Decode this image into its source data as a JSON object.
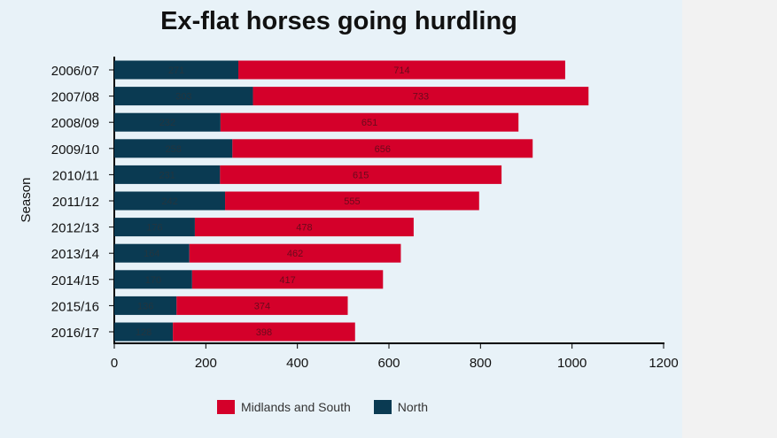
{
  "chart_data": {
    "type": "bar",
    "orientation": "horizontal",
    "stacked": true,
    "title": "Ex-flat horses going hurdling",
    "xlabel": "",
    "ylabel": "Season",
    "xlim": [
      0,
      1200
    ],
    "xticks": [
      0,
      200,
      400,
      600,
      800,
      1000,
      1200
    ],
    "grid": false,
    "legend_position": "bottom",
    "categories": [
      "2006/07",
      "2007/08",
      "2008/09",
      "2009/10",
      "2010/11",
      "2011/12",
      "2012/13",
      "2013/14",
      "2014/15",
      "2015/16",
      "2016/17"
    ],
    "series": [
      {
        "name": "North",
        "color": "#0a3a52",
        "values": [
          271,
          303,
          232,
          258,
          231,
          242,
          176,
          164,
          170,
          136,
          128
        ]
      },
      {
        "name": "Midlands and South",
        "color": "#d4002a",
        "values": [
          714,
          733,
          651,
          656,
          615,
          555,
          478,
          462,
          417,
          374,
          398
        ]
      }
    ]
  },
  "legend": {
    "items": [
      {
        "label": "Midlands and South",
        "color": "#d4002a"
      },
      {
        "label": "North",
        "color": "#0a3a52"
      }
    ]
  }
}
